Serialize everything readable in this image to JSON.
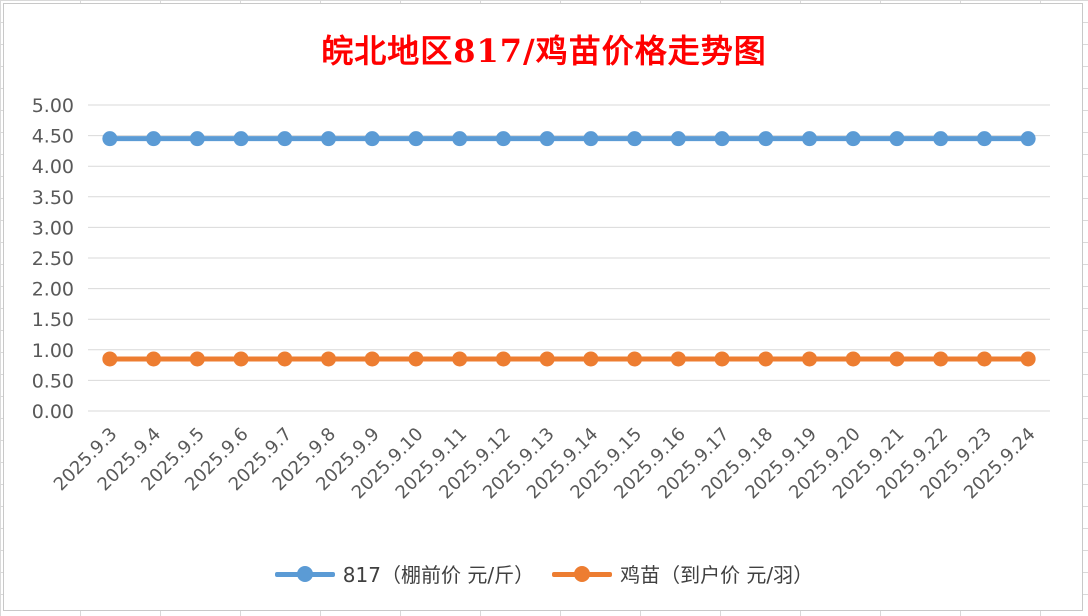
{
  "chart_data": {
    "type": "line",
    "title": "皖北地区817/鸡苗价格走势图",
    "categories": [
      "2025.9.3",
      "2025.9.4",
      "2025.9.5",
      "2025.9.6",
      "2025.9.7",
      "2025.9.8",
      "2025.9.9",
      "2025.9.10",
      "2025.9.11",
      "2025.9.12",
      "2025.9.13",
      "2025.9.14",
      "2025.9.15",
      "2025.9.16",
      "2025.9.17",
      "2025.9.18",
      "2025.9.19",
      "2025.9.20",
      "2025.9.21",
      "2025.9.22",
      "2025.9.23",
      "2025.9.24"
    ],
    "series": [
      {
        "name": "817（棚前价 元/斤）",
        "color": "#5b9bd5",
        "values": [
          4.45,
          4.45,
          4.45,
          4.45,
          4.45,
          4.45,
          4.45,
          4.45,
          4.45,
          4.45,
          4.45,
          4.45,
          4.45,
          4.45,
          4.45,
          4.45,
          4.45,
          4.45,
          4.45,
          4.45,
          4.45,
          4.45
        ]
      },
      {
        "name": "鸡苗（到户价 元/羽）",
        "color": "#ed7d31",
        "values": [
          0.85,
          0.85,
          0.85,
          0.85,
          0.85,
          0.85,
          0.85,
          0.85,
          0.85,
          0.85,
          0.85,
          0.85,
          0.85,
          0.85,
          0.85,
          0.85,
          0.85,
          0.85,
          0.85,
          0.85,
          0.85,
          0.85
        ]
      }
    ],
    "ylim": [
      0,
      5
    ],
    "ytick_labels": [
      "0.00",
      "0.50",
      "1.00",
      "1.50",
      "2.00",
      "2.50",
      "3.00",
      "3.50",
      "4.00",
      "4.50",
      "5.00"
    ],
    "ytick_values": [
      0,
      0.5,
      1,
      1.5,
      2,
      2.5,
      3,
      3.5,
      4,
      4.5,
      5
    ],
    "grid": true,
    "legend_position": "bottom",
    "xlabel": "",
    "ylabel": ""
  }
}
